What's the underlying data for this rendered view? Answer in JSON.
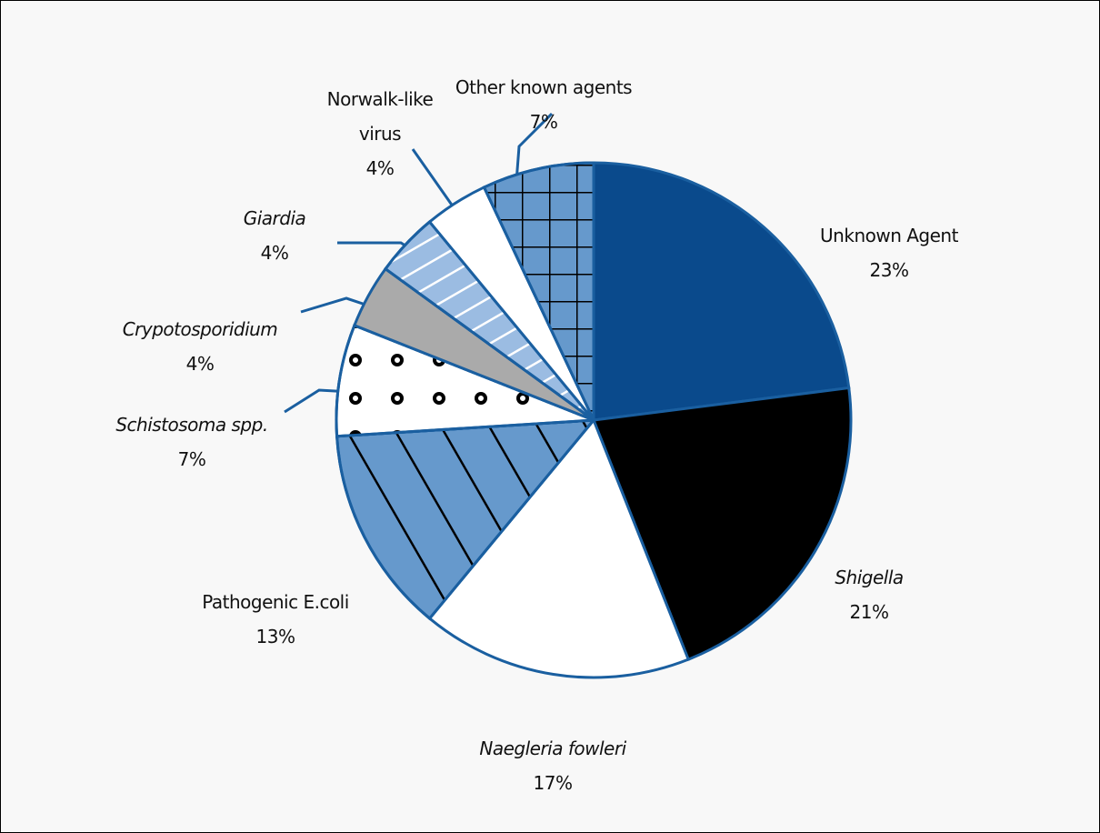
{
  "chart_data": {
    "type": "pie",
    "categories": [
      "Unknown Agent",
      "Shigella",
      "Naegleria fowleri",
      "Pathogenic E.coli",
      "Schistosoma spp.",
      "Crypotosporidium",
      "Giardia",
      "Norwalk-like virus",
      "Other known agents"
    ],
    "values": [
      23,
      21,
      17,
      13,
      7,
      4,
      4,
      4,
      7
    ],
    "value_labels": [
      "23%",
      "21%",
      "17%",
      "13%",
      "7%",
      "4%",
      "4%",
      "4%",
      "7%"
    ],
    "colors": [
      "#0a4a8c",
      "#000000",
      "#ffffff",
      "#6699cc",
      "#ffffff",
      "#aaaaaa",
      "#9bbce2",
      "#ffffff",
      "#6699cc"
    ]
  }
}
